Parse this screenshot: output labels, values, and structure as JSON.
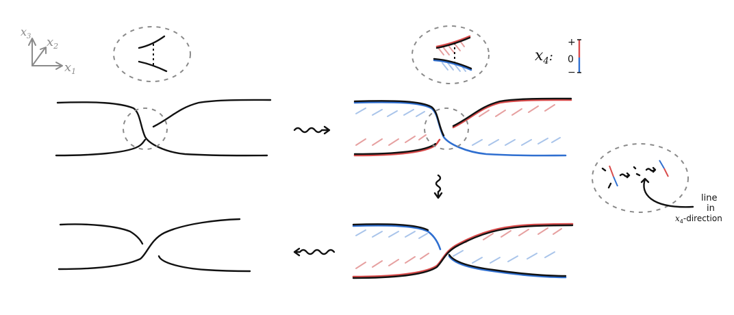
{
  "axes": {
    "x1": "x",
    "x1_sub": "1",
    "x2": "x",
    "x2_sub": "2",
    "x3": "x",
    "x3_sub": "3"
  },
  "legend": {
    "var": "x",
    "var_sub": "4",
    "colon": ":",
    "plus": "+",
    "zero": "0",
    "minus": "−",
    "colors": {
      "positive": "#d84a4a",
      "negative": "#2f6fd0"
    }
  },
  "annotation": {
    "line1": "line",
    "line2": "in",
    "line3_var": "x",
    "line3_sub": "4",
    "line3_rest": "-direction"
  },
  "colors": {
    "ink": "#111111",
    "red": "#d84a4a",
    "blue": "#2f6fd0",
    "red_hatch": "#e6a0a0",
    "blue_hatch": "#a9c4ea",
    "grey": "#8a8a8a"
  }
}
